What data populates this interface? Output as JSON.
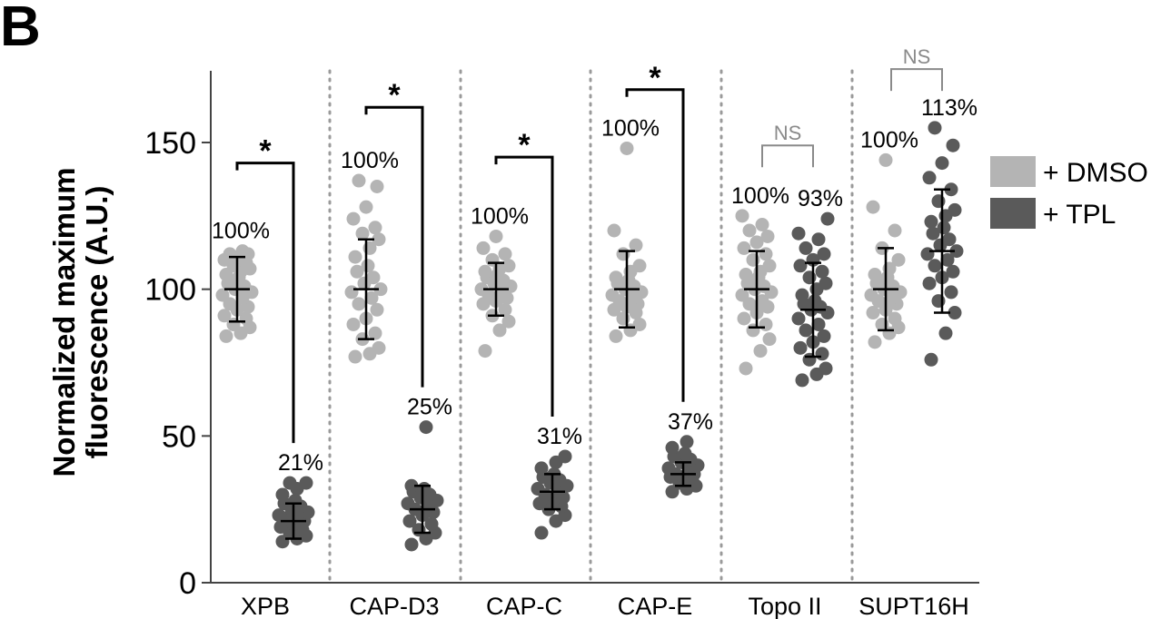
{
  "panel_label": "B",
  "chart_data": {
    "type": "scatter",
    "ylabel": [
      "Normalized maximum",
      "fluorescence (A.U.)"
    ],
    "ylim": [
      0,
      175
    ],
    "yticks": [
      0,
      50,
      100,
      150
    ],
    "grid": false,
    "legend_position": "right",
    "series": [
      {
        "name": "+ DMSO",
        "color": "#b4b4b4"
      },
      {
        "name": "+ TPL",
        "color": "#5a5a5a"
      }
    ],
    "groups": [
      {
        "category": "XPB",
        "dmso": {
          "label": "100%",
          "mean": 100,
          "sd_low": 89,
          "sd_high": 111,
          "points": [
            84,
            85,
            87,
            88,
            90,
            91,
            93,
            94,
            95,
            97,
            98,
            99,
            100,
            101,
            102,
            104,
            105,
            106,
            107,
            108,
            109,
            110,
            111,
            112,
            112,
            113
          ]
        },
        "tpl": {
          "label": "21%",
          "mean": 21,
          "sd_low": 15,
          "sd_high": 27,
          "points": [
            14,
            15,
            16,
            17,
            18,
            19,
            20,
            21,
            22,
            22,
            23,
            24,
            25,
            26,
            27,
            28,
            30,
            32,
            34,
            34
          ]
        },
        "significance": {
          "type": "star",
          "text": "*",
          "top": 143
        }
      },
      {
        "category": "CAP-D3",
        "dmso": {
          "label": "100%",
          "mean": 100,
          "sd_low": 83,
          "sd_high": 117,
          "points": [
            77,
            78,
            80,
            83,
            85,
            88,
            90,
            93,
            95,
            97,
            99,
            100,
            102,
            104,
            106,
            108,
            111,
            114,
            117,
            119,
            121,
            124,
            128,
            135,
            137
          ]
        },
        "tpl": {
          "label": "25%",
          "mean": 25,
          "sd_low": 17,
          "sd_high": 33,
          "points": [
            13,
            15,
            17,
            18,
            20,
            21,
            23,
            24,
            25,
            26,
            27,
            28,
            29,
            30,
            31,
            32,
            33,
            53
          ]
        },
        "significance": {
          "type": "star",
          "text": "*",
          "top": 162
        }
      },
      {
        "category": "CAP-C",
        "dmso": {
          "label": "100%",
          "mean": 100,
          "sd_low": 91,
          "sd_high": 109,
          "points": [
            79,
            86,
            89,
            91,
            93,
            95,
            96,
            97,
            98,
            99,
            100,
            101,
            102,
            103,
            104,
            105,
            106,
            107,
            108,
            110,
            112,
            114,
            118
          ]
        },
        "tpl": {
          "label": "31%",
          "mean": 31,
          "sd_low": 25,
          "sd_high": 37,
          "points": [
            17,
            21,
            23,
            25,
            26,
            27,
            28,
            29,
            30,
            31,
            32,
            33,
            34,
            35,
            36,
            37,
            39,
            41,
            43
          ]
        },
        "significance": {
          "type": "star",
          "text": "*",
          "top": 145
        }
      },
      {
        "category": "CAP-E",
        "dmso": {
          "label": "100%",
          "mean": 100,
          "sd_low": 87,
          "sd_high": 113,
          "points": [
            84,
            86,
            88,
            90,
            92,
            93,
            94,
            95,
            96,
            97,
            98,
            99,
            100,
            101,
            102,
            103,
            104,
            106,
            108,
            112,
            115,
            120,
            148
          ]
        },
        "tpl": {
          "label": "37%",
          "mean": 37,
          "sd_low": 33,
          "sd_high": 41,
          "points": [
            31,
            32,
            33,
            34,
            35,
            36,
            36,
            37,
            37,
            38,
            39,
            40,
            41,
            42,
            43,
            44,
            46,
            48
          ]
        },
        "significance": {
          "type": "star",
          "text": "*",
          "top": 168
        }
      },
      {
        "category": "Topo II",
        "dmso": {
          "label": "100%",
          "mean": 100,
          "sd_low": 87,
          "sd_high": 113,
          "points": [
            73,
            79,
            83,
            86,
            88,
            90,
            92,
            94,
            95,
            96,
            98,
            99,
            100,
            101,
            102,
            104,
            105,
            106,
            108,
            110,
            112,
            114,
            116,
            118,
            120,
            122,
            125
          ]
        },
        "tpl": {
          "label": "93%",
          "mean": 93,
          "sd_low": 77,
          "sd_high": 109,
          "points": [
            69,
            71,
            73,
            76,
            78,
            80,
            82,
            84,
            86,
            88,
            90,
            92,
            93,
            94,
            95,
            96,
            98,
            100,
            102,
            104,
            106,
            108,
            110,
            112,
            114,
            117,
            119,
            124
          ]
        },
        "significance": {
          "type": "ns",
          "text": "NS",
          "top": 149
        }
      },
      {
        "category": "SUPT16H",
        "dmso": {
          "label": "100%",
          "mean": 100,
          "sd_low": 86,
          "sd_high": 114,
          "points": [
            82,
            85,
            87,
            88,
            90,
            92,
            93,
            95,
            96,
            97,
            98,
            99,
            100,
            101,
            102,
            104,
            105,
            107,
            110,
            114,
            120,
            128,
            144
          ]
        },
        "tpl": {
          "label": "113%",
          "mean": 113,
          "sd_low": 92,
          "sd_high": 134,
          "points": [
            76,
            85,
            92,
            96,
            99,
            102,
            104,
            106,
            108,
            110,
            112,
            113,
            115,
            117,
            119,
            121,
            123,
            125,
            127,
            130,
            134,
            138,
            143,
            149,
            155
          ]
        },
        "significance": {
          "type": "ns",
          "text": "NS",
          "top": 175
        }
      }
    ]
  }
}
